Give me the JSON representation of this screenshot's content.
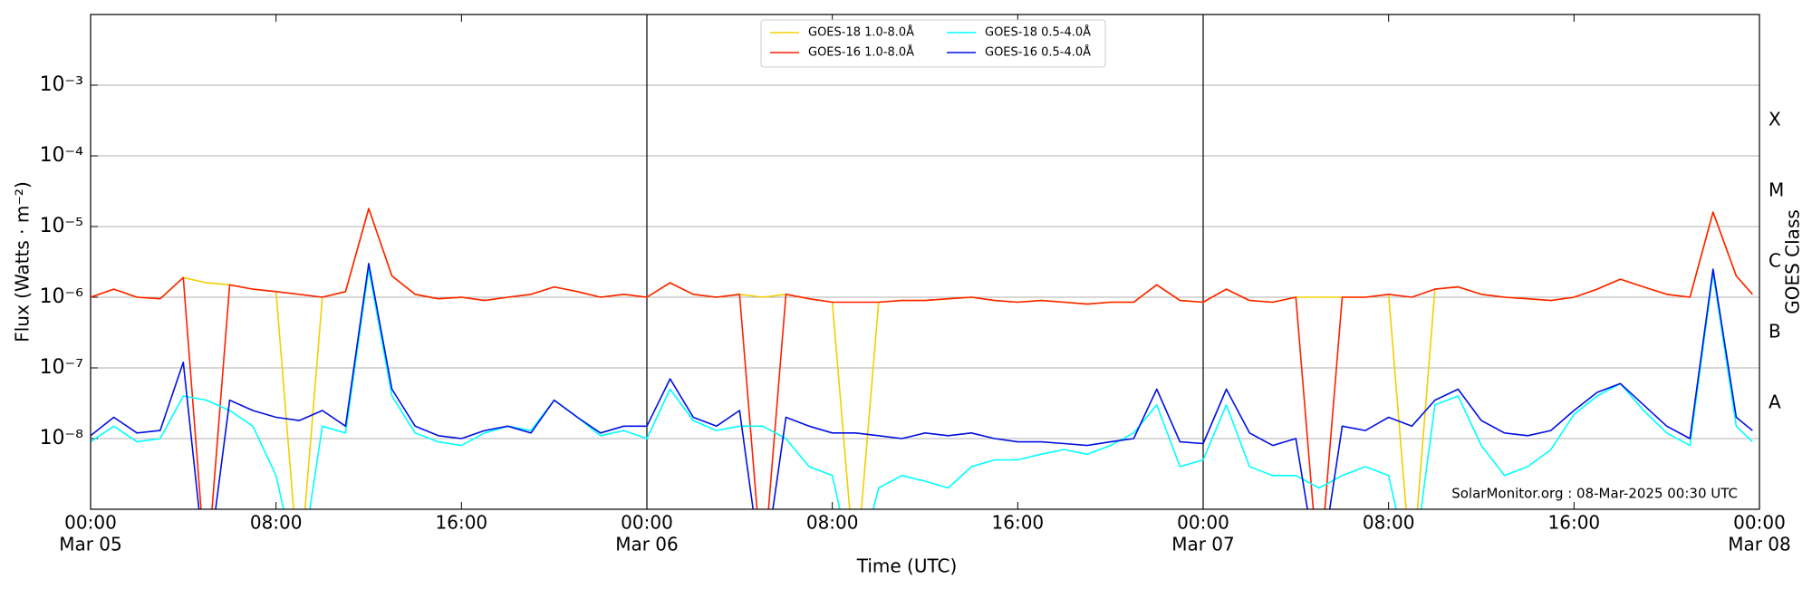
{
  "chart_data": {
    "type": "line",
    "xlabel": "Time (UTC)",
    "ylabel": "Flux (Watts · m⁻²)",
    "y2label": "GOES Class",
    "annotation": "SolarMonitor.org : 08-Mar-2025 00:30 UTC",
    "ylog": true,
    "grid": true,
    "legend": "upper center",
    "xlim": [
      0,
      72
    ],
    "ylim": [
      1e-09,
      0.01
    ],
    "y2lim": [
      1e-09,
      0.01
    ],
    "xticks": [
      {
        "value": 0,
        "label": "00:00"
      },
      {
        "value": 8,
        "label": "08:00"
      },
      {
        "value": 16,
        "label": "16:00"
      },
      {
        "value": 24,
        "label": "00:00"
      },
      {
        "value": 32,
        "label": "08:00"
      },
      {
        "value": 40,
        "label": "16:00"
      },
      {
        "value": 48,
        "label": "00:00"
      },
      {
        "value": 56,
        "label": "08:00"
      },
      {
        "value": 64,
        "label": "16:00"
      },
      {
        "value": 72,
        "label": "00:00"
      }
    ],
    "date_labels": [
      {
        "value": 0,
        "label": "Mar 05"
      },
      {
        "value": 24,
        "label": "Mar 06"
      },
      {
        "value": 48,
        "label": "Mar 07"
      },
      {
        "value": 72,
        "label": "Mar 08"
      }
    ],
    "yticks": [
      {
        "value": 1e-08,
        "label": "10⁻⁸"
      },
      {
        "value": 1e-07,
        "label": "10⁻⁷"
      },
      {
        "value": 1e-06,
        "label": "10⁻⁶"
      },
      {
        "value": 1e-05,
        "label": "10⁻⁵"
      },
      {
        "value": 0.0001,
        "label": "10⁻⁴"
      },
      {
        "value": 0.001,
        "label": "10⁻³"
      }
    ],
    "y2ticks": [
      {
        "value": 3.16e-08,
        "label": "A"
      },
      {
        "value": 3.16e-07,
        "label": "B"
      },
      {
        "value": 3.16e-06,
        "label": "C"
      },
      {
        "value": 3.16e-05,
        "label": "M"
      },
      {
        "value": 0.000316,
        "label": "X"
      }
    ],
    "x": [
      0,
      1,
      2,
      3,
      4,
      5,
      6,
      7,
      8,
      9,
      10,
      11,
      12,
      13,
      14,
      15,
      16,
      17,
      18,
      19,
      20,
      21,
      22,
      23,
      24,
      25,
      26,
      27,
      28,
      29,
      30,
      31,
      32,
      33,
      34,
      35,
      36,
      37,
      38,
      39,
      40,
      41,
      42,
      43,
      44,
      45,
      46,
      47,
      48,
      49,
      50,
      51,
      52,
      53,
      54,
      55,
      56,
      57,
      58,
      59,
      60,
      61,
      62,
      63,
      64,
      65,
      66,
      67,
      68,
      69,
      70,
      71,
      71.7
    ],
    "series": [
      {
        "name": "GOES-18 1.0-8.0Å",
        "color": "#f2d000",
        "values": [
          1e-06,
          1.3e-06,
          1e-06,
          9.5e-07,
          1.9e-06,
          1.6e-06,
          1.5e-06,
          1.3e-06,
          1.2e-06,
          1e-10,
          1e-06,
          1.2e-06,
          1.8e-05,
          2e-06,
          1.1e-06,
          9.5e-07,
          1e-06,
          9e-07,
          1e-06,
          1.1e-06,
          1.4e-06,
          1.2e-06,
          1e-06,
          1.1e-06,
          1e-06,
          1.6e-06,
          1.1e-06,
          1e-06,
          1.1e-06,
          1e-06,
          1.1e-06,
          9.5e-07,
          8.5e-07,
          1e-10,
          8.5e-07,
          9e-07,
          9e-07,
          9.5e-07,
          1e-06,
          9e-07,
          8.5e-07,
          9e-07,
          8.5e-07,
          8e-07,
          8.5e-07,
          8.5e-07,
          1.5e-06,
          9e-07,
          8.5e-07,
          1.3e-06,
          9e-07,
          8.5e-07,
          1e-06,
          1e-06,
          1e-06,
          1e-06,
          1.1e-06,
          1e-10,
          1.3e-06,
          1.4e-06,
          1.1e-06,
          1e-06,
          9.5e-07,
          9e-07,
          1e-06,
          1.3e-06,
          1.8e-06,
          1.4e-06,
          1.1e-06,
          1e-06,
          1.6e-05,
          2e-06,
          1.1e-06
        ]
      },
      {
        "name": "GOES-16 1.0-8.0Å",
        "color": "#ff2000",
        "values": [
          1e-06,
          1.3e-06,
          1e-06,
          9.5e-07,
          1.9e-06,
          1e-10,
          1.5e-06,
          1.3e-06,
          1.2e-06,
          1.1e-06,
          1e-06,
          1.2e-06,
          1.8e-05,
          2e-06,
          1.1e-06,
          9.5e-07,
          1e-06,
          9e-07,
          1e-06,
          1.1e-06,
          1.4e-06,
          1.2e-06,
          1e-06,
          1.1e-06,
          1e-06,
          1.6e-06,
          1.1e-06,
          1e-06,
          1.1e-06,
          1e-10,
          1.1e-06,
          9.5e-07,
          8.5e-07,
          8.5e-07,
          8.5e-07,
          9e-07,
          9e-07,
          9.5e-07,
          1e-06,
          9e-07,
          8.5e-07,
          9e-07,
          8.5e-07,
          8e-07,
          8.5e-07,
          8.5e-07,
          1.5e-06,
          9e-07,
          8.5e-07,
          1.3e-06,
          9e-07,
          8.5e-07,
          1e-06,
          1e-10,
          1e-06,
          1e-06,
          1.1e-06,
          1e-06,
          1.3e-06,
          1.4e-06,
          1.1e-06,
          1e-06,
          9.5e-07,
          9e-07,
          1e-06,
          1.3e-06,
          1.8e-06,
          1.4e-06,
          1.1e-06,
          1e-06,
          1.6e-05,
          2e-06,
          1.1e-06
        ]
      },
      {
        "name": "GOES-18 0.5-4.0Å",
        "color": "#00ffff",
        "values": [
          9e-09,
          1.5e-08,
          9e-09,
          1e-08,
          4e-08,
          3.5e-08,
          2.5e-08,
          1.5e-08,
          3e-09,
          1e-10,
          1.5e-08,
          1.2e-08,
          2.5e-06,
          4e-08,
          1.2e-08,
          9e-09,
          8e-09,
          1.2e-08,
          1.5e-08,
          1.3e-08,
          3.5e-08,
          2e-08,
          1.1e-08,
          1.3e-08,
          1e-08,
          5e-08,
          1.8e-08,
          1.3e-08,
          1.5e-08,
          1.5e-08,
          1e-08,
          4e-09,
          3e-09,
          1e-10,
          2e-09,
          3e-09,
          2.5e-09,
          2e-09,
          4e-09,
          5e-09,
          5e-09,
          6e-09,
          7e-09,
          6e-09,
          8e-09,
          1.2e-08,
          3e-08,
          4e-09,
          5e-09,
          3e-08,
          4e-09,
          3e-09,
          3e-09,
          2e-09,
          3e-09,
          4e-09,
          3e-09,
          1e-10,
          3e-08,
          4e-08,
          8e-09,
          3e-09,
          4e-09,
          7e-09,
          2.2e-08,
          4e-08,
          6e-08,
          2.5e-08,
          1.2e-08,
          8e-09,
          2.2e-06,
          1.5e-08,
          9e-09
        ]
      },
      {
        "name": "GOES-16 0.5-4.0Å",
        "color": "#0010e0",
        "values": [
          1.1e-08,
          2e-08,
          1.2e-08,
          1.3e-08,
          1.2e-07,
          1e-10,
          3.5e-08,
          2.5e-08,
          2e-08,
          1.8e-08,
          2.5e-08,
          1.5e-08,
          3e-06,
          5e-08,
          1.5e-08,
          1.1e-08,
          1e-08,
          1.3e-08,
          1.5e-08,
          1.2e-08,
          3.5e-08,
          2e-08,
          1.2e-08,
          1.5e-08,
          1.5e-08,
          7e-08,
          2e-08,
          1.5e-08,
          2.5e-08,
          1e-10,
          2e-08,
          1.5e-08,
          1.2e-08,
          1.2e-08,
          1.1e-08,
          1e-08,
          1.2e-08,
          1.1e-08,
          1.2e-08,
          1e-08,
          9e-09,
          9e-09,
          8.5e-09,
          8e-09,
          9e-09,
          1e-08,
          5e-08,
          9e-09,
          8.5e-09,
          5e-08,
          1.2e-08,
          8e-09,
          1e-08,
          1e-10,
          1.5e-08,
          1.3e-08,
          2e-08,
          1.5e-08,
          3.5e-08,
          5e-08,
          1.8e-08,
          1.2e-08,
          1.1e-08,
          1.3e-08,
          2.5e-08,
          4.5e-08,
          6e-08,
          3e-08,
          1.5e-08,
          1e-08,
          2.5e-06,
          2e-08,
          1.3e-08
        ]
      }
    ]
  }
}
